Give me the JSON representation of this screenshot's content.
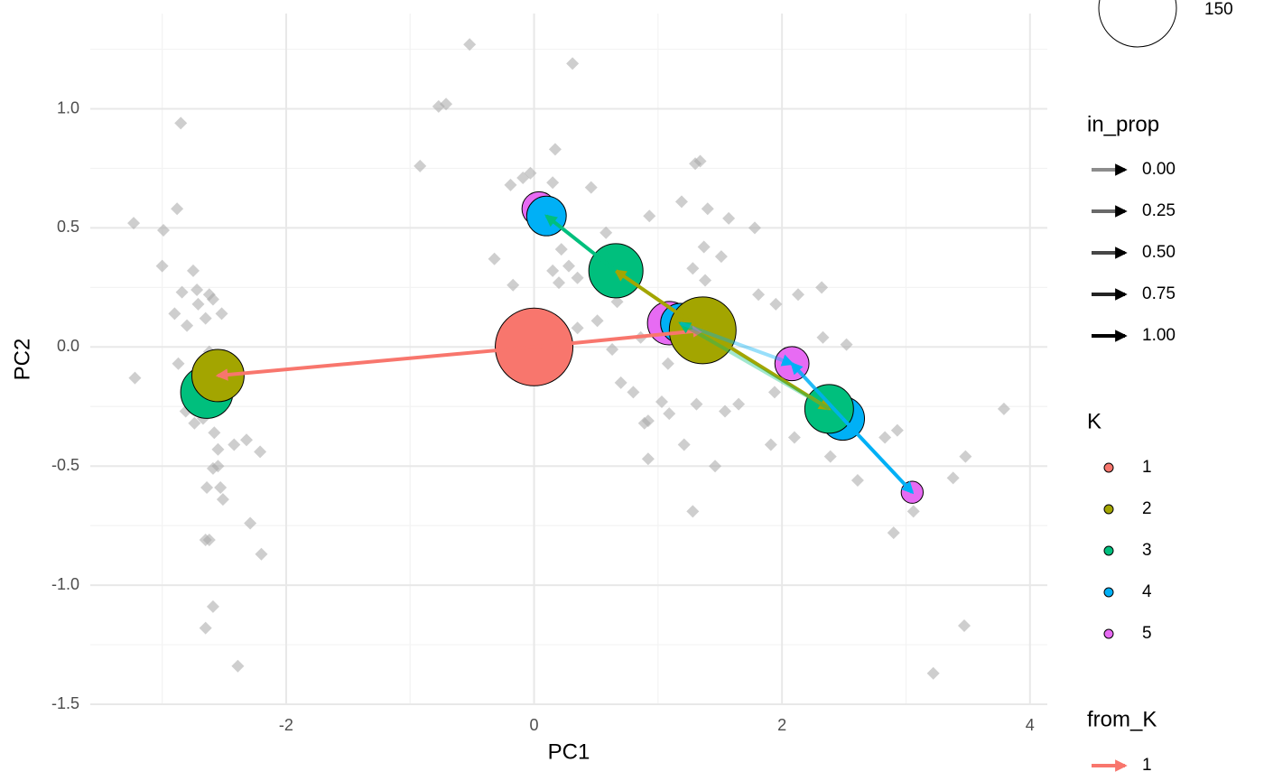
{
  "chart_data": {
    "type": "scatter",
    "x_label": "PC1",
    "y_label": "PC2",
    "xlim": [
      -3.58,
      4.14
    ],
    "ylim": [
      -1.5,
      1.4
    ],
    "xticks": [
      -2,
      0,
      2,
      4
    ],
    "yticks": [
      -1.5,
      {
        "value": -1,
        "label": "-1.0"
      },
      -0.5,
      {
        "value": 0,
        "label": "0.0"
      },
      0.5,
      {
        "value": 1,
        "label": "1.0"
      }
    ],
    "grid": true,
    "points": {
      "color": "#a6a6a6",
      "x": [
        -3.23,
        -3.22,
        -2.99,
        -3.0,
        -2.88,
        -2.85,
        -2.9,
        -2.87,
        -2.84,
        -2.8,
        -2.75,
        -2.72,
        -2.71,
        -2.65,
        -2.62,
        -2.59,
        -2.52,
        -2.62,
        -2.81,
        -2.74,
        -2.67,
        -2.58,
        -2.55,
        -2.59,
        -2.55,
        -2.64,
        -2.53,
        -2.51,
        -2.65,
        -2.62,
        -2.59,
        -2.65,
        -2.39,
        -2.29,
        -2.2,
        -2.42,
        -2.32,
        -2.21,
        -0.52,
        0.31,
        -0.77,
        -0.71,
        -0.92,
        0.17,
        -0.03,
        -0.19,
        -0.32,
        -0.17,
        -0.09,
        0.15,
        0.46,
        0.22,
        0.28,
        0.15,
        0.2,
        0.35,
        0.58,
        0.51,
        0.35,
        0.63,
        0.7,
        0.8,
        0.89,
        0.92,
        0.92,
        1.03,
        1.08,
        1.09,
        0.93,
        1.19,
        1.3,
        1.34,
        1.4,
        1.37,
        1.28,
        1.51,
        1.38,
        1.57,
        1.78,
        1.81,
        1.95,
        2.13,
        2.32,
        1.31,
        1.21,
        1.46,
        1.28,
        1.54,
        1.65,
        1.94,
        1.91,
        2.1,
        2.39,
        2.33,
        2.52,
        2.61,
        2.93,
        2.83,
        2.9,
        3.06,
        3.38,
        3.48,
        3.79,
        3.47,
        3.22,
        0.86,
        0.67
      ],
      "y": [
        0.52,
        -0.13,
        0.49,
        0.34,
        0.58,
        0.94,
        0.14,
        -0.07,
        0.23,
        0.09,
        0.32,
        0.24,
        0.18,
        0.12,
        0.22,
        0.2,
        0.14,
        -0.02,
        -0.27,
        -0.32,
        -0.3,
        -0.36,
        -0.43,
        -0.51,
        -0.5,
        -0.59,
        -0.59,
        -0.64,
        -0.81,
        -0.81,
        -1.09,
        -1.18,
        -1.34,
        -0.74,
        -0.87,
        -0.41,
        -0.39,
        -0.44,
        1.27,
        1.19,
        1.01,
        1.02,
        0.76,
        0.83,
        0.73,
        0.68,
        0.37,
        0.26,
        0.71,
        0.69,
        0.67,
        0.41,
        0.34,
        0.32,
        0.27,
        0.29,
        0.48,
        0.11,
        0.08,
        -0.01,
        -0.15,
        -0.19,
        -0.32,
        -0.31,
        -0.47,
        -0.23,
        -0.07,
        -0.28,
        0.55,
        0.61,
        0.77,
        0.78,
        0.58,
        0.42,
        0.33,
        0.38,
        0.28,
        0.54,
        0.5,
        0.22,
        0.18,
        0.22,
        0.25,
        -0.24,
        -0.41,
        -0.5,
        -0.69,
        -0.27,
        -0.24,
        -0.19,
        -0.41,
        -0.38,
        -0.46,
        0.04,
        0.01,
        -0.56,
        -0.35,
        -0.38,
        -0.78,
        -0.69,
        -0.55,
        -0.46,
        -0.26,
        -1.17,
        -1.37,
        0.04,
        0.19
      ]
    },
    "size_legend": {
      "values": [
        150
      ]
    },
    "k_title": "K",
    "series": [
      {
        "name": "1",
        "color": "#F8766D",
        "x": [
          0
        ],
        "y": [
          0
        ],
        "size": [
          150
        ]
      },
      {
        "name": "2",
        "color": "#A3A500",
        "x": [
          -2.55,
          1.36
        ],
        "y": [
          -0.12,
          0.07
        ],
        "size": [
          68,
          111
        ]
      },
      {
        "name": "3",
        "color": "#00BF7D",
        "x": [
          -2.64,
          0.66,
          2.38
        ],
        "y": [
          -0.19,
          0.32,
          -0.26
        ],
        "size": [
          68,
          73,
          59
        ]
      },
      {
        "name": "4",
        "color": "#00B0F6",
        "x": [
          0.1,
          1.18,
          2.49
        ],
        "y": [
          0.55,
          0.1,
          -0.3
        ],
        "size": [
          39,
          39,
          47
        ]
      },
      {
        "name": "5",
        "color": "#E76BF3",
        "x": [
          0.04,
          1.09,
          2.08,
          3.05
        ],
        "y": [
          0.58,
          0.1,
          -0.07,
          -0.61
        ],
        "size": [
          29,
          47,
          29,
          12
        ]
      }
    ],
    "in_prop_legend": {
      "title": "in_prop",
      "values": [
        {
          "value": 0,
          "label": "0.00"
        },
        {
          "value": 0.25,
          "label": "0.25"
        },
        {
          "value": 0.5,
          "label": "0.50"
        },
        {
          "value": 0.75,
          "label": "0.75"
        },
        {
          "value": 1,
          "label": "1.00"
        }
      ]
    },
    "arrows": [
      {
        "from_K": 1,
        "color": "#F8766D",
        "x": [
          0,
          -2.55
        ],
        "y": [
          0,
          -0.12
        ],
        "in_prop": 1
      },
      {
        "from_K": 1,
        "color": "#F8766D",
        "x": [
          0,
          1.36
        ],
        "y": [
          0,
          0.07
        ],
        "in_prop": 1
      },
      {
        "from_K": 2,
        "color": "#A3A500",
        "x": [
          1.36,
          0.66
        ],
        "y": [
          0.07,
          0.32
        ],
        "in_prop": 1
      },
      {
        "from_K": 2,
        "color": "#A3A500",
        "x": [
          1.36,
          2.38
        ],
        "y": [
          0.07,
          -0.26
        ],
        "in_prop": 1
      },
      {
        "from_K": 3,
        "color": "#00BF7D",
        "x": [
          0.66,
          0.1
        ],
        "y": [
          0.32,
          0.55
        ],
        "in_prop": 1
      },
      {
        "from_K": 3,
        "color": "#00BF7D",
        "x": [
          2.38,
          1.18
        ],
        "y": [
          -0.26,
          0.1
        ],
        "in_prop": 0.1
      },
      {
        "from_K": 4,
        "color": "#00B0F6",
        "x": [
          1.18,
          2.08
        ],
        "y": [
          0.1,
          -0.07
        ],
        "in_prop": 0.15
      },
      {
        "from_K": 4,
        "color": "#00B0F6",
        "x": [
          2.49,
          3.05
        ],
        "y": [
          -0.3,
          -0.61
        ],
        "in_prop": 1
      },
      {
        "from_K": 4,
        "color": "#00B0F6",
        "x": [
          2.49,
          2.08
        ],
        "y": [
          -0.3,
          -0.07
        ],
        "in_prop": 0.8
      }
    ],
    "from_k_legend": {
      "title": "from_K",
      "labels": [
        "1"
      ],
      "colors": [
        "#F8766D"
      ]
    }
  }
}
